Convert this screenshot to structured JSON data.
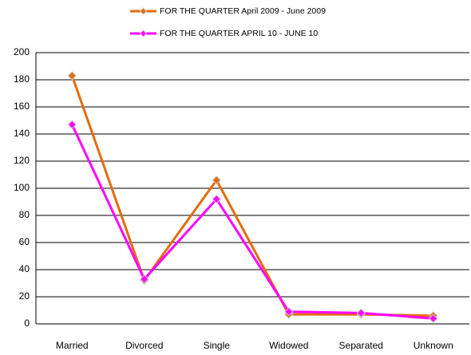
{
  "chart_data": {
    "type": "line",
    "categories": [
      "Married",
      "Divorced",
      "Single",
      "Widowed",
      "Separated",
      "Unknown"
    ],
    "series": [
      {
        "name": "FOR THE QUARTER April 2009 - June 2009",
        "color": "#e36c0a",
        "values": [
          183,
          32,
          106,
          7,
          7,
          6
        ]
      },
      {
        "name": "FOR THE QUARTER APRIL 10 - JUNE 10",
        "color": "#ff00ff",
        "values": [
          147,
          33,
          92,
          9,
          8,
          4
        ]
      }
    ],
    "ylim": [
      0,
      200
    ],
    "yticks": [
      0,
      20,
      40,
      60,
      80,
      100,
      120,
      140,
      160,
      180,
      200
    ],
    "grid": true,
    "legend": "top"
  }
}
